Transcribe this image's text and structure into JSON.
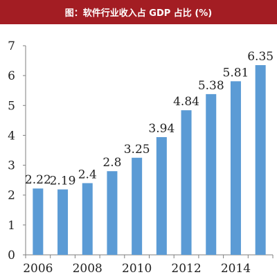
{
  "chart_data": {
    "type": "bar",
    "title": "图：软件行业收入占 GDP 占比 (%)",
    "categories": [
      "2006",
      "2007",
      "2008",
      "2009",
      "2010",
      "2011",
      "2012",
      "2013",
      "2014",
      "2015"
    ],
    "x_tick_labels": [
      "2006",
      "",
      "2008",
      "",
      "2010",
      "",
      "2012",
      "",
      "2014",
      ""
    ],
    "values": [
      2.22,
      2.19,
      2.4,
      2.8,
      3.25,
      3.94,
      4.84,
      5.38,
      5.81,
      6.35
    ],
    "data_labels": [
      "2.22",
      "2.19",
      "2.4",
      "2.8",
      "3.25",
      "3.94",
      "4.84",
      "5.38",
      "5.81",
      "6.35"
    ],
    "y_ticks": [
      "0",
      "1",
      "2",
      "3",
      "4",
      "5",
      "6",
      "7"
    ],
    "ylim": [
      0,
      7
    ],
    "xlabel": "",
    "ylabel": "",
    "grid": false,
    "bar_color": "#5b9bd5",
    "title_bg_color": "#a31d23"
  }
}
